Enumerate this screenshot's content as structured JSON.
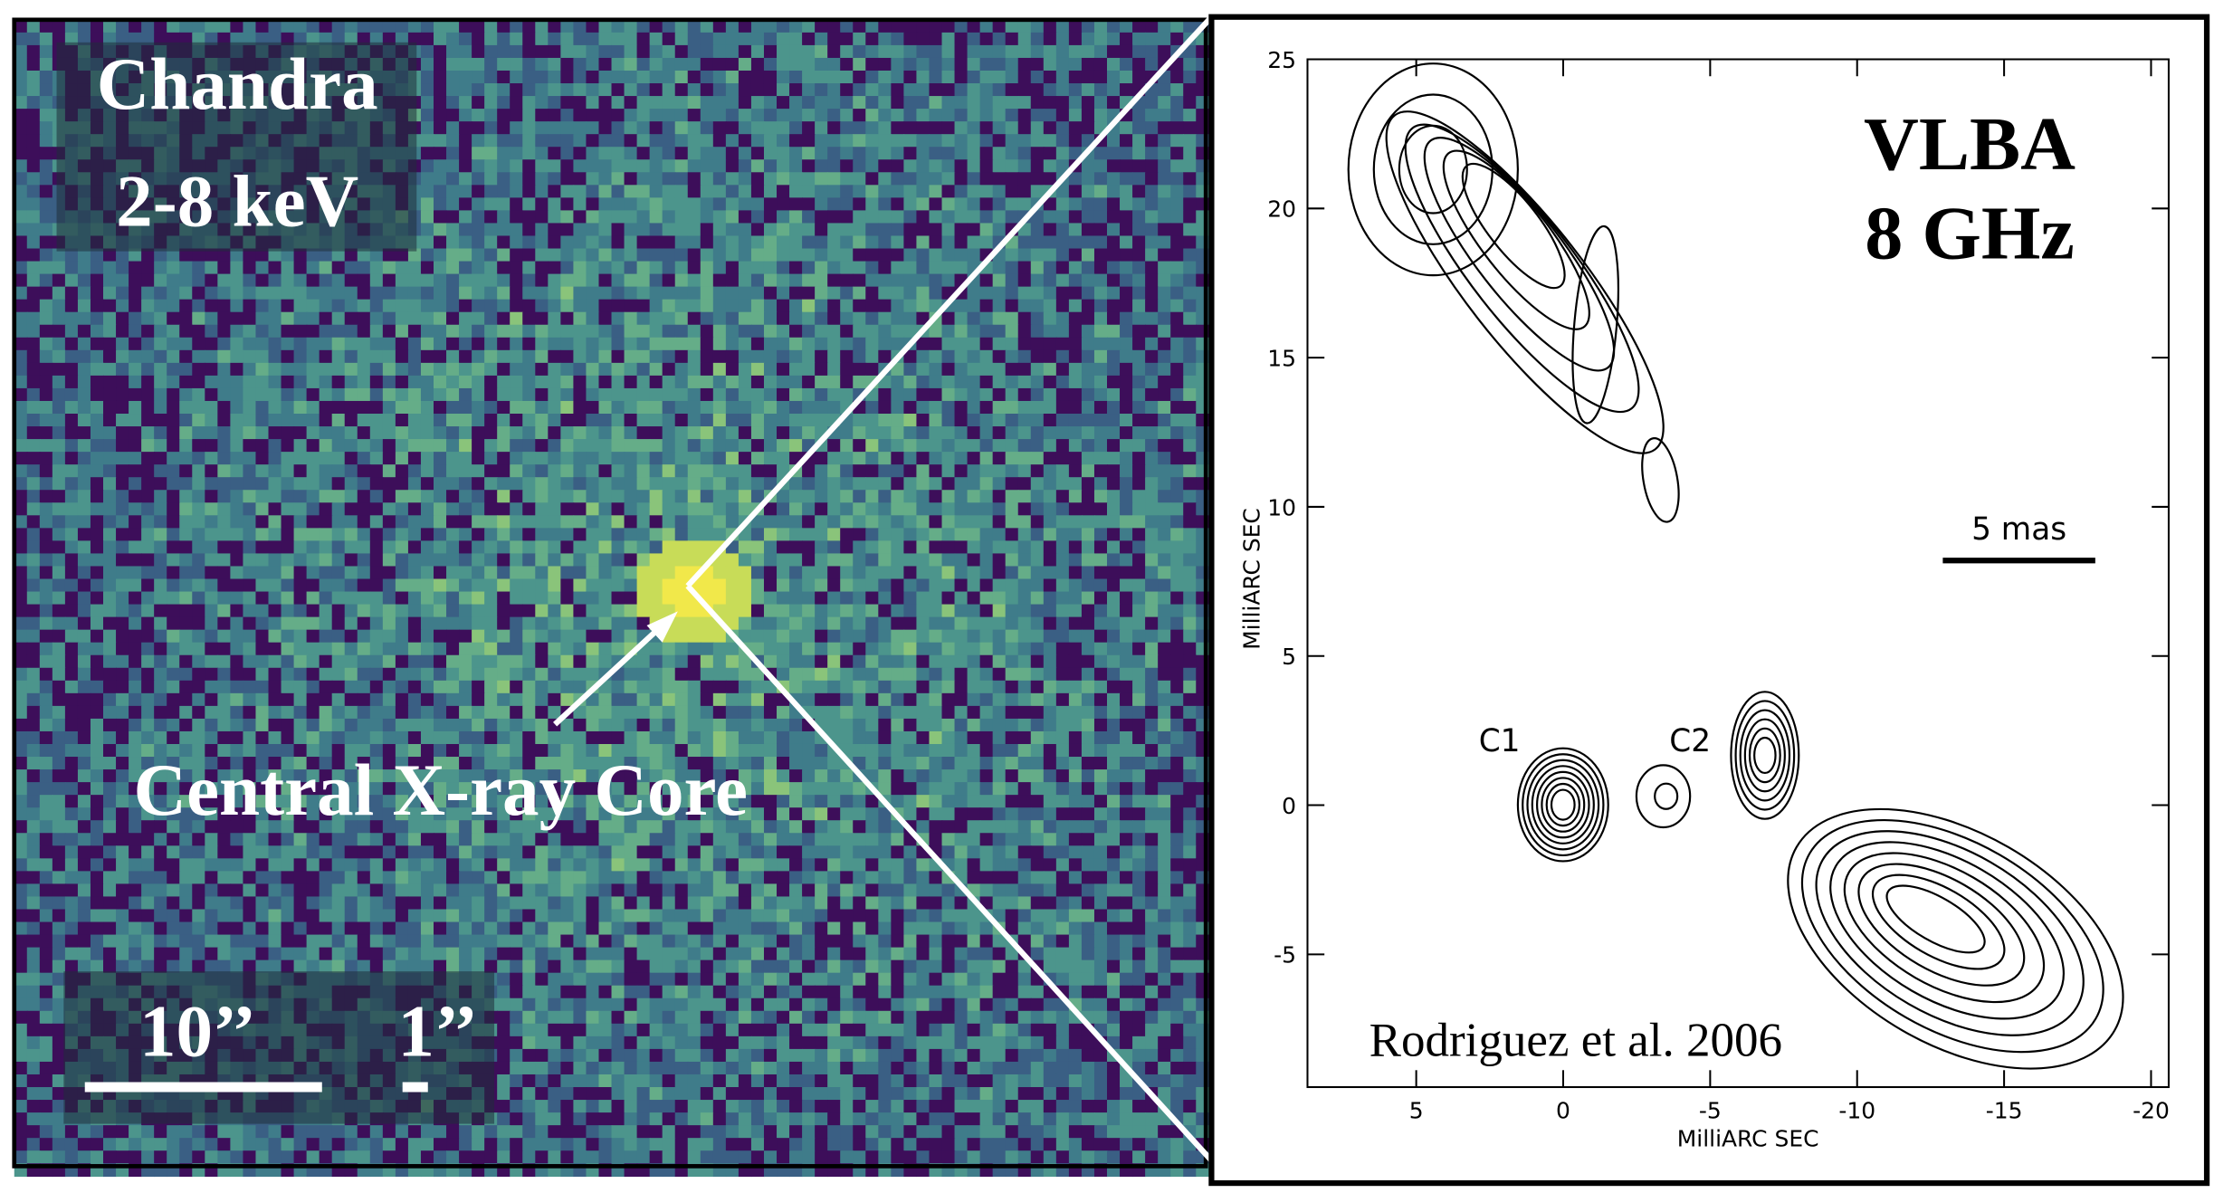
{
  "left_panel": {
    "title": "Chandra",
    "band": "2-8 keV",
    "annotation": "Central X-ray Core",
    "scale_large": "10’’",
    "scale_small": "1’’"
  },
  "right_panel": {
    "title": "VLBA",
    "frequency": "8 GHz",
    "scale_bar": "5 mas",
    "component_1": "C1",
    "component_2": "C2",
    "credit": "Rodriguez et al. 2006",
    "x_label": "MilliARC SEC",
    "y_label": "MilliARC SEC",
    "xlim": [
      8.7,
      -20.6
    ],
    "ylim": [
      -9.45,
      25
    ],
    "xticks": [
      5,
      0,
      -5,
      -10,
      -15,
      -20
    ],
    "yticks": [
      25,
      20,
      15,
      10,
      5,
      0,
      -5
    ]
  }
}
